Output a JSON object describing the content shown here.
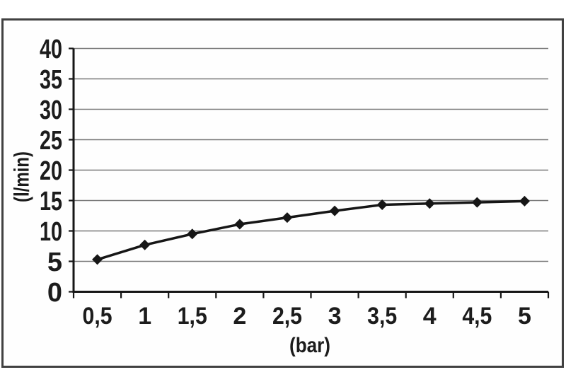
{
  "chart_data": {
    "type": "line",
    "xlabel": "(bar)",
    "ylabel": "(l/min)",
    "x_tick_labels": [
      "0,5",
      "1",
      "1,5",
      "2",
      "2,5",
      "3",
      "3,5",
      "4",
      "4,5",
      "5"
    ],
    "x_values": [
      0.5,
      1,
      1.5,
      2,
      2.5,
      3,
      3.5,
      4,
      4.5,
      5
    ],
    "values": [
      5.3,
      7.7,
      9.5,
      11.1,
      12.2,
      13.3,
      14.3,
      14.5,
      14.7,
      14.9
    ],
    "y_tick_labels": [
      "0",
      "5",
      "10",
      "15",
      "20",
      "25",
      "30",
      "35",
      "40"
    ],
    "ylim": [
      0,
      40
    ],
    "ytick_step": 5,
    "grid": "horizontal",
    "legend": "none",
    "marker": "diamond",
    "line_color": "#161616",
    "grid_color": "#787878",
    "text_color": "#1c1c1c",
    "frame_border_color": "#414141",
    "background": "#fefefe"
  }
}
